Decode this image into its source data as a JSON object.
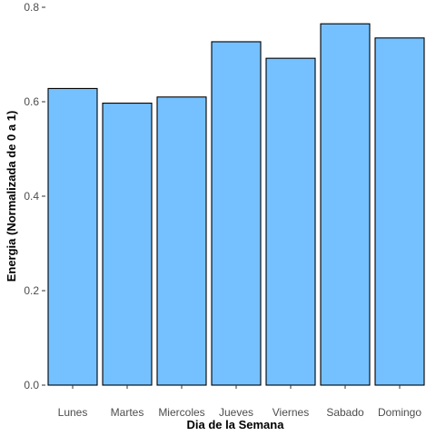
{
  "chart_data": {
    "type": "bar",
    "title": "",
    "xlabel": "Dia de la Semana",
    "ylabel": "Energia (Normalizada de 0 a 1)",
    "categories": [
      "Lunes",
      "Martes",
      "Miercoles",
      "Jueves",
      "Viernes",
      "Sabado",
      "Domingo"
    ],
    "values": [
      0.628,
      0.597,
      0.61,
      0.727,
      0.692,
      0.765,
      0.735
    ],
    "ylim": [
      0,
      0.8
    ],
    "yticks": [
      "0.0",
      "0.2",
      "0.4",
      "0.6",
      "0.8"
    ],
    "grid": false,
    "legend": "none",
    "colors": {
      "bar_fill": "#75C1FF",
      "bar_stroke": "#000000"
    }
  }
}
